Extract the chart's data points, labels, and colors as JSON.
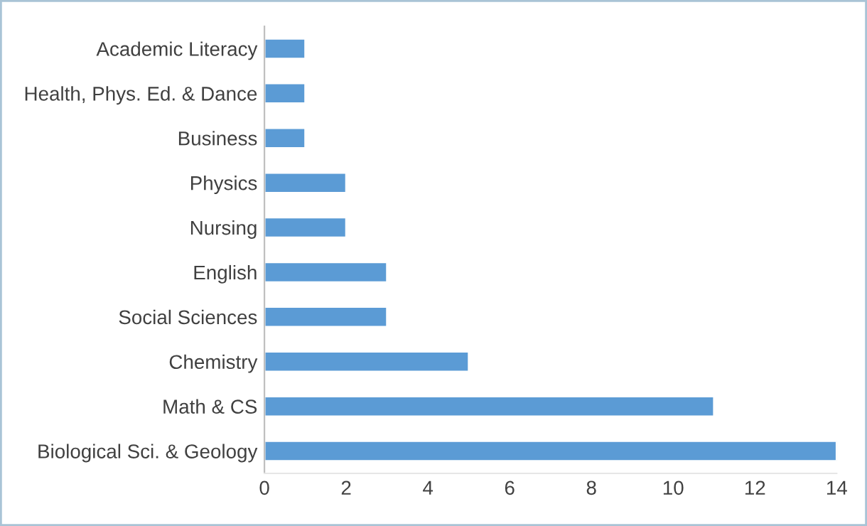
{
  "chart_data": {
    "type": "bar",
    "orientation": "horizontal",
    "categories": [
      "Academic Literacy",
      "Health, Phys. Ed. & Dance",
      "Business",
      "Physics",
      "Nursing",
      "English",
      "Social Sciences",
      "Chemistry",
      "Math & CS",
      "Biological Sci. & Geology"
    ],
    "values": [
      1,
      1,
      1,
      2,
      2,
      3,
      3,
      5,
      11,
      14
    ],
    "color": "#5b9bd5",
    "xlim": [
      0,
      14
    ],
    "xticks": [
      0,
      2,
      4,
      6,
      8,
      10,
      12,
      14
    ],
    "grid": false,
    "legend": false
  }
}
